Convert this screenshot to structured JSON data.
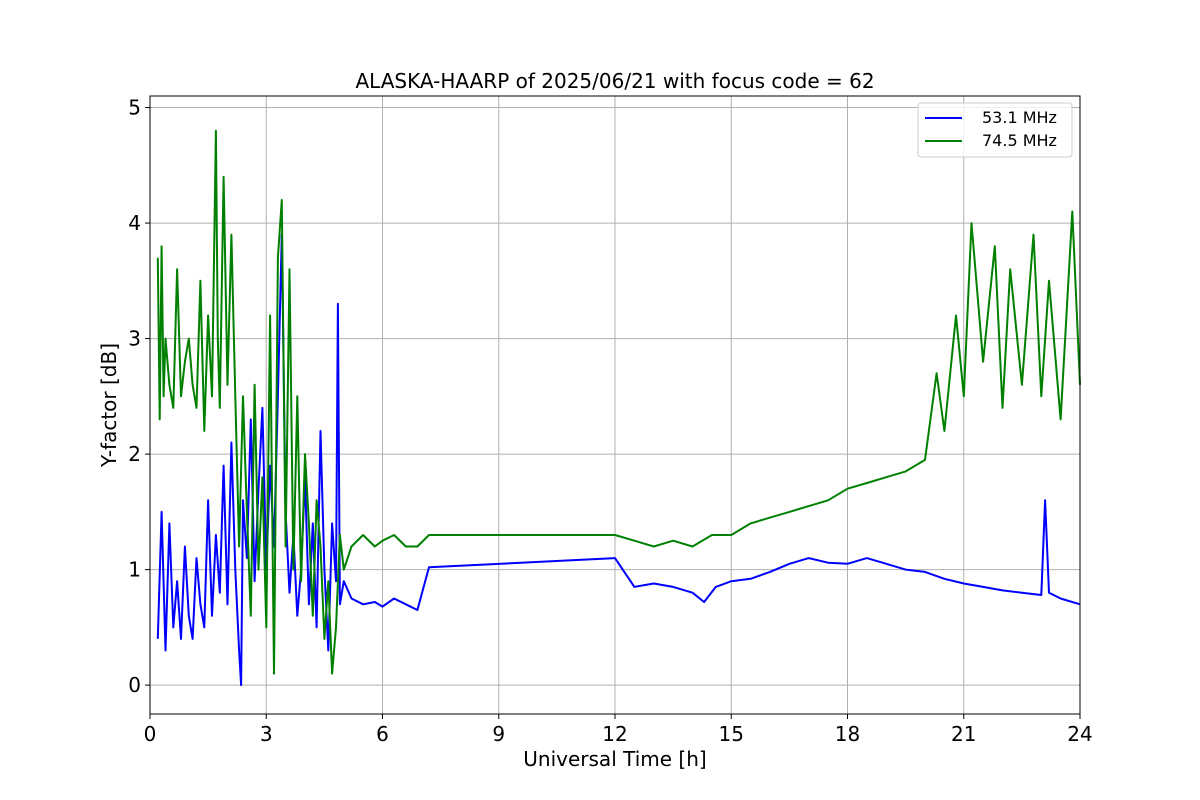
{
  "chart_data": {
    "type": "line",
    "title": "ALASKA-HAARP of 2025/06/21 with focus code = 62",
    "xlabel": "Universal Time [h]",
    "ylabel": "Y-factor [dB]",
    "xlim": [
      0,
      24
    ],
    "ylim": [
      -0.25,
      5.1
    ],
    "xticks": [
      0,
      3,
      6,
      9,
      12,
      15,
      18,
      21,
      24
    ],
    "xtick_labels": [
      "0",
      "3",
      "6",
      "9",
      "12",
      "15",
      "18",
      "21",
      "24"
    ],
    "yticks": [
      0,
      1,
      2,
      3,
      4,
      5
    ],
    "ytick_labels": [
      "0",
      "1",
      "2",
      "3",
      "4",
      "5"
    ],
    "grid": true,
    "legend_position": "top-right",
    "series": [
      {
        "name": "53.1 MHz",
        "color": "#0000ff",
        "x": [
          0.2,
          0.3,
          0.4,
          0.5,
          0.6,
          0.7,
          0.8,
          0.9,
          1.0,
          1.1,
          1.2,
          1.3,
          1.4,
          1.5,
          1.6,
          1.7,
          1.8,
          1.9,
          2.0,
          2.1,
          2.2,
          2.3,
          2.35,
          2.4,
          2.5,
          2.6,
          2.7,
          2.8,
          2.9,
          3.0,
          3.1,
          3.2,
          3.3,
          3.4,
          3.5,
          3.6,
          3.7,
          3.8,
          3.9,
          4.0,
          4.1,
          4.2,
          4.3,
          4.4,
          4.5,
          4.6,
          4.7,
          4.8,
          4.85,
          4.9,
          5.0,
          5.2,
          5.5,
          5.8,
          6.0,
          6.3,
          6.6,
          6.9,
          7.2,
          12.0,
          12.5,
          13.0,
          13.5,
          14.0,
          14.3,
          14.6,
          15.0,
          15.5,
          16.0,
          16.5,
          17.0,
          17.5,
          18.0,
          18.5,
          19.0,
          19.5,
          20.0,
          20.5,
          21.0,
          21.5,
          22.0,
          22.5,
          23.0,
          23.1,
          23.2,
          23.5,
          24.0
        ],
        "values": [
          0.4,
          1.5,
          0.3,
          1.4,
          0.5,
          0.9,
          0.4,
          1.2,
          0.6,
          0.4,
          1.1,
          0.7,
          0.5,
          1.6,
          0.6,
          1.3,
          0.8,
          1.9,
          0.7,
          2.1,
          1.0,
          0.3,
          0.0,
          1.6,
          1.1,
          2.3,
          0.9,
          1.7,
          2.4,
          1.0,
          1.9,
          1.2,
          2.5,
          3.9,
          1.5,
          0.8,
          1.3,
          0.6,
          1.0,
          1.8,
          0.7,
          1.4,
          0.5,
          2.2,
          1.0,
          0.3,
          1.4,
          0.9,
          3.3,
          0.7,
          0.9,
          0.75,
          0.7,
          0.72,
          0.68,
          0.75,
          0.7,
          0.65,
          1.02,
          1.1,
          0.85,
          0.88,
          0.85,
          0.8,
          0.72,
          0.85,
          0.9,
          0.92,
          0.98,
          1.05,
          1.1,
          1.06,
          1.05,
          1.1,
          1.05,
          1.0,
          0.98,
          0.92,
          0.88,
          0.85,
          0.82,
          0.8,
          0.78,
          1.6,
          0.8,
          0.75,
          0.7
        ]
      },
      {
        "name": "74.5 MHz",
        "color": "#008000",
        "x": [
          0.2,
          0.25,
          0.3,
          0.35,
          0.4,
          0.5,
          0.6,
          0.7,
          0.8,
          0.9,
          1.0,
          1.1,
          1.2,
          1.3,
          1.4,
          1.5,
          1.6,
          1.7,
          1.75,
          1.8,
          1.9,
          2.0,
          2.1,
          2.2,
          2.3,
          2.4,
          2.5,
          2.6,
          2.7,
          2.8,
          2.9,
          3.0,
          3.1,
          3.2,
          3.3,
          3.4,
          3.5,
          3.6,
          3.7,
          3.8,
          3.9,
          4.0,
          4.1,
          4.2,
          4.3,
          4.4,
          4.5,
          4.6,
          4.7,
          4.8,
          4.9,
          5.0,
          5.2,
          5.5,
          5.8,
          6.0,
          6.3,
          6.6,
          6.9,
          7.2,
          12.0,
          12.5,
          13.0,
          13.5,
          14.0,
          14.5,
          15.0,
          15.5,
          16.0,
          16.5,
          17.0,
          17.5,
          18.0,
          18.5,
          19.0,
          19.5,
          20.0,
          20.3,
          20.5,
          20.8,
          21.0,
          21.2,
          21.5,
          21.8,
          22.0,
          22.2,
          22.5,
          22.8,
          23.0,
          23.2,
          23.5,
          23.8,
          24.0
        ],
        "values": [
          3.7,
          2.3,
          3.8,
          2.5,
          3.0,
          2.6,
          2.4,
          3.6,
          2.5,
          2.8,
          3.0,
          2.6,
          2.4,
          3.5,
          2.2,
          3.2,
          2.5,
          4.8,
          3.0,
          2.4,
          4.4,
          2.6,
          3.9,
          2.5,
          1.2,
          2.5,
          1.5,
          0.6,
          2.6,
          1.0,
          1.8,
          0.5,
          3.2,
          0.1,
          3.7,
          4.2,
          1.2,
          3.6,
          1.0,
          2.5,
          0.9,
          2.0,
          1.4,
          0.6,
          1.6,
          1.2,
          0.4,
          0.9,
          0.1,
          0.5,
          1.3,
          1.0,
          1.2,
          1.3,
          1.2,
          1.25,
          1.3,
          1.2,
          1.2,
          1.3,
          1.3,
          1.25,
          1.2,
          1.25,
          1.2,
          1.3,
          1.3,
          1.4,
          1.45,
          1.5,
          1.55,
          1.6,
          1.7,
          1.75,
          1.8,
          1.85,
          1.95,
          2.7,
          2.2,
          3.2,
          2.5,
          4.0,
          2.8,
          3.8,
          2.4,
          3.6,
          2.6,
          3.9,
          2.5,
          3.5,
          2.3,
          4.1,
          2.6
        ]
      }
    ]
  }
}
